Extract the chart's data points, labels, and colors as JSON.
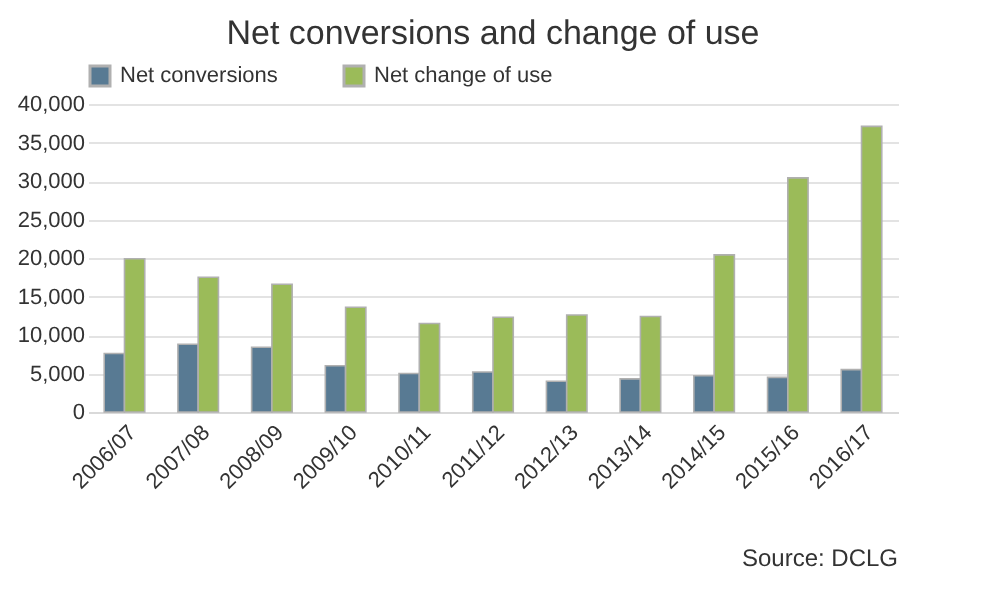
{
  "chart_data": {
    "type": "bar",
    "title": "Net conversions and change of use",
    "categories": [
      "2006/07",
      "2007/08",
      "2008/09",
      "2009/10",
      "2010/11",
      "2011/12",
      "2012/13",
      "2013/14",
      "2014/15",
      "2015/16",
      "2016/17"
    ],
    "series": [
      {
        "name": "Net conversions",
        "color": "#587a93",
        "values": [
          7600,
          8800,
          8400,
          6000,
          5000,
          5200,
          4000,
          4300,
          4700,
          4500,
          5500
        ]
      },
      {
        "name": "Net change of use",
        "color": "#9bbb59",
        "values": [
          19900,
          17500,
          16600,
          13600,
          11500,
          12300,
          12600,
          12400,
          20400,
          30400,
          37100
        ]
      }
    ],
    "ylim": [
      0,
      40000
    ],
    "yticks": [
      0,
      {
        "value": 5000,
        "label": "5,000"
      },
      {
        "value": 10000,
        "label": "10,000"
      },
      {
        "value": 15000,
        "label": "15,000"
      },
      {
        "value": 20000,
        "label": "20,000"
      },
      {
        "value": 25000,
        "label": "25,000"
      },
      {
        "value": 30000,
        "label": "30,000"
      },
      {
        "value": 35000,
        "label": "35,000"
      },
      {
        "value": 40000,
        "label": "40,000"
      }
    ],
    "grid": "y",
    "legend": "top",
    "annotations": [
      "Source: DCLG"
    ]
  }
}
